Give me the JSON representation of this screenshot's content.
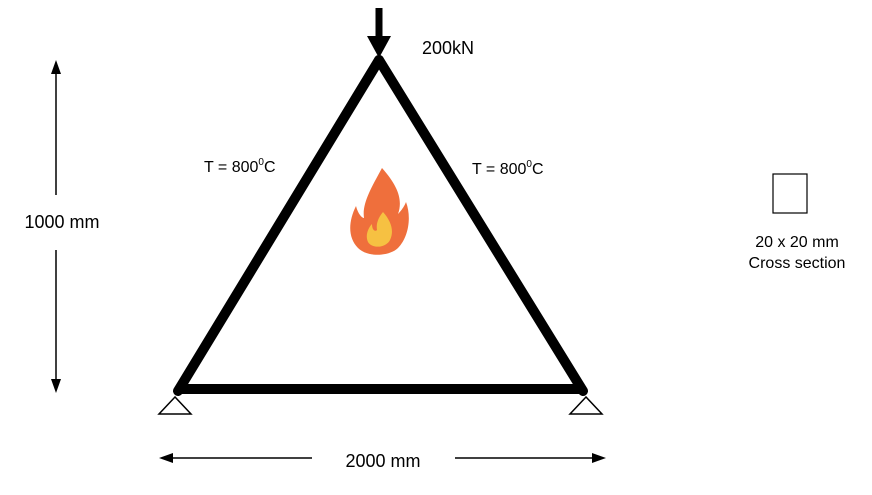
{
  "load": {
    "label": "200kN"
  },
  "left_member": {
    "temp_prefix": "T = 800",
    "temp_sup": "0",
    "temp_unit": "C"
  },
  "right_member": {
    "temp_prefix": "T = 800",
    "temp_sup": "0",
    "temp_unit": "C"
  },
  "height_dimension": {
    "label": "1000 mm"
  },
  "width_dimension": {
    "label": "2000 mm"
  },
  "cross_section": {
    "line1": "20 x 20 mm",
    "line2": "Cross section"
  },
  "icons": {
    "fire": "fire-icon",
    "support_left": "pin-support-icon",
    "support_right": "pin-support-icon"
  },
  "colors": {
    "frame": "#000000",
    "fire_outer": "#ef6f3c",
    "fire_inner": "#f6c142"
  }
}
